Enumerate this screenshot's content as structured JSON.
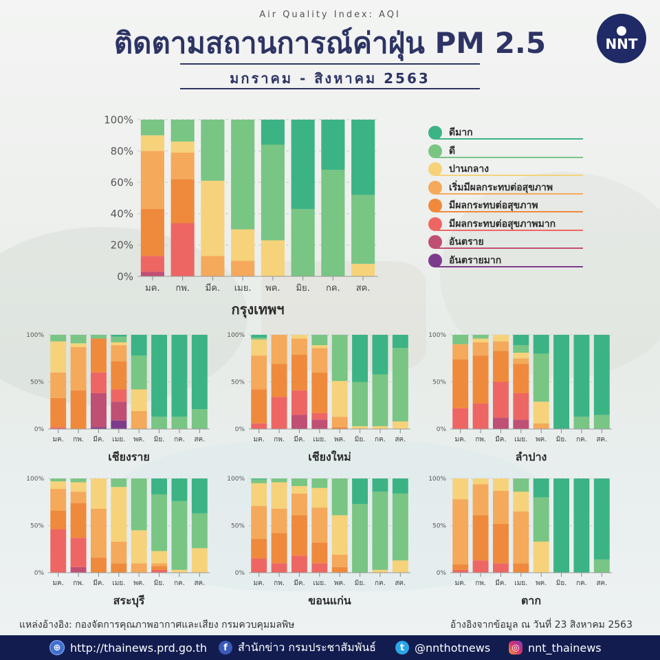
{
  "header": {
    "subtitle": "Air Quality Index: AQI",
    "title": "ติดตามสถานการณ์ค่าฝุ่น PM 2.5",
    "period": "มกราคม - สิงหาคม 2563",
    "logo_text": "NNT"
  },
  "legend": [
    {
      "label": "ดีมาก",
      "color": "#3cb384"
    },
    {
      "label": "ดี",
      "color": "#79c584"
    },
    {
      "label": "ปานกลาง",
      "color": "#f6d27a"
    },
    {
      "label": "เริ่มมีผลกระทบต่อสุขภาพ",
      "color": "#f5a95a"
    },
    {
      "label": "มีผลกระทบต่อสุขภาพ",
      "color": "#ef8a3c"
    },
    {
      "label": "มีผลกระทบต่อสุขภาพมาก",
      "color": "#ee6663"
    },
    {
      "label": "อันตราย",
      "color": "#c04f74"
    },
    {
      "label": "อันตรายมาก",
      "color": "#7d3b8c"
    }
  ],
  "chart_data": [
    {
      "type": "bar",
      "stacked": true,
      "city": "กรุงเทพฯ",
      "categories": [
        "มค.",
        "กพ.",
        "มีค.",
        "เมย.",
        "พค.",
        "มิย.",
        "กค.",
        "สค."
      ],
      "y_ticks": [
        "0%",
        "20%",
        "40%",
        "60%",
        "80%",
        "100%"
      ],
      "ylim": [
        0,
        100
      ],
      "series": [
        {
          "name": "อันตรายมาก",
          "values": [
            0,
            0,
            0,
            0,
            0,
            0,
            0,
            0
          ]
        },
        {
          "name": "อันตราย",
          "values": [
            3,
            0,
            0,
            0,
            0,
            0,
            0,
            0
          ]
        },
        {
          "name": "มีผลกระทบต่อสุขภาพมาก",
          "values": [
            10,
            34,
            0,
            0,
            0,
            0,
            0,
            0
          ]
        },
        {
          "name": "มีผลกระทบต่อสุขภาพ",
          "values": [
            30,
            28,
            0,
            0,
            0,
            0,
            0,
            0
          ]
        },
        {
          "name": "เริ่มมีผลกระทบต่อสุขภาพ",
          "values": [
            37,
            17,
            13,
            10,
            0,
            0,
            0,
            0
          ]
        },
        {
          "name": "ปานกลาง",
          "values": [
            10,
            7,
            48,
            20,
            23,
            0,
            0,
            8
          ]
        },
        {
          "name": "ดี",
          "values": [
            10,
            14,
            39,
            70,
            61,
            43,
            68,
            44
          ]
        },
        {
          "name": "ดีมาก",
          "values": [
            0,
            0,
            0,
            0,
            16,
            57,
            32,
            48
          ]
        }
      ]
    },
    {
      "type": "bar",
      "stacked": true,
      "city": "เชียงราย",
      "categories": [
        "มค.",
        "กพ.",
        "มีค.",
        "เมย.",
        "พค.",
        "มิย.",
        "กค.",
        "สค."
      ],
      "y_ticks": [
        "0%",
        "50%",
        "100%"
      ],
      "ylim": [
        0,
        100
      ],
      "series": [
        {
          "name": "อันตรายมาก",
          "values": [
            0,
            0,
            2,
            9,
            0,
            0,
            0,
            0
          ]
        },
        {
          "name": "อันตราย",
          "values": [
            0,
            0,
            36,
            20,
            0,
            0,
            0,
            0
          ]
        },
        {
          "name": "มีผลกระทบต่อสุขภาพมาก",
          "values": [
            2,
            0,
            22,
            13,
            0,
            0,
            0,
            0
          ]
        },
        {
          "name": "มีผลกระทบต่อสุขภาพ",
          "values": [
            31,
            41,
            36,
            30,
            0,
            0,
            0,
            0
          ]
        },
        {
          "name": "เริ่มมีผลกระทบต่อสุขภาพ",
          "values": [
            27,
            46,
            0,
            17,
            19,
            0,
            0,
            0
          ]
        },
        {
          "name": "ปานกลาง",
          "values": [
            33,
            4,
            0,
            3,
            23,
            0,
            0,
            0
          ]
        },
        {
          "name": "ดี",
          "values": [
            7,
            9,
            4,
            6,
            36,
            13,
            13,
            21
          ]
        },
        {
          "name": "ดีมาก",
          "values": [
            0,
            0,
            0,
            2,
            22,
            87,
            87,
            79
          ]
        }
      ]
    },
    {
      "type": "bar",
      "stacked": true,
      "city": "เชียงใหม่",
      "categories": [
        "มค.",
        "กพ.",
        "มีค.",
        "เมย.",
        "พค.",
        "มิย.",
        "กค.",
        "สค."
      ],
      "y_ticks": [
        "0%",
        "50%",
        "100%"
      ],
      "ylim": [
        0,
        100
      ],
      "series": [
        {
          "name": "อันตรายมาก",
          "values": [
            0,
            0,
            0,
            0,
            0,
            0,
            0,
            0
          ]
        },
        {
          "name": "อันตราย",
          "values": [
            0,
            0,
            15,
            10,
            0,
            0,
            0,
            0
          ]
        },
        {
          "name": "มีผลกระทบต่อสุขภาพมาก",
          "values": [
            6,
            34,
            26,
            7,
            0,
            0,
            0,
            0
          ]
        },
        {
          "name": "มีผลกระทบต่อสุขภาพ",
          "values": [
            36,
            35,
            38,
            43,
            2,
            0,
            0,
            0
          ]
        },
        {
          "name": "เริ่มมีผลกระทบต่อสุขภาพ",
          "values": [
            36,
            31,
            17,
            26,
            11,
            0,
            0,
            0
          ]
        },
        {
          "name": "ปานกลาง",
          "values": [
            17,
            0,
            4,
            3,
            38,
            3,
            3,
            8
          ]
        },
        {
          "name": "ดี",
          "values": [
            2,
            0,
            0,
            11,
            49,
            47,
            55,
            78
          ]
        },
        {
          "name": "ดีมาก",
          "values": [
            3,
            0,
            0,
            0,
            0,
            50,
            42,
            14
          ]
        }
      ]
    },
    {
      "type": "bar",
      "stacked": true,
      "city": "ลำปาง",
      "categories": [
        "มค.",
        "กพ.",
        "มีค.",
        "เมย.",
        "พค.",
        "มิย.",
        "กค.",
        "สค."
      ],
      "y_ticks": [
        "0%",
        "50%",
        "100%"
      ],
      "ylim": [
        0,
        100
      ],
      "series": [
        {
          "name": "อันตรายมาก",
          "values": [
            0,
            0,
            0,
            0,
            0,
            0,
            0,
            0
          ]
        },
        {
          "name": "อันตราย",
          "values": [
            0,
            0,
            12,
            10,
            0,
            0,
            0,
            0
          ]
        },
        {
          "name": "มีผลกระทบต่อสุขภาพมาก",
          "values": [
            22,
            27,
            38,
            28,
            0,
            0,
            0,
            0
          ]
        },
        {
          "name": "มีผลกระทบต่อสุขภาพ",
          "values": [
            52,
            51,
            33,
            31,
            0,
            0,
            0,
            0
          ]
        },
        {
          "name": "เริ่มมีผลกระทบต่อสุขภาพ",
          "values": [
            16,
            14,
            10,
            6,
            6,
            0,
            0,
            0
          ]
        },
        {
          "name": "ปานกลาง",
          "values": [
            0,
            4,
            7,
            6,
            23,
            0,
            0,
            0
          ]
        },
        {
          "name": "ดี",
          "values": [
            10,
            4,
            0,
            8,
            51,
            0,
            13,
            15
          ]
        },
        {
          "name": "ดีมาก",
          "values": [
            0,
            0,
            0,
            11,
            20,
            100,
            87,
            85
          ]
        }
      ]
    },
    {
      "type": "bar",
      "stacked": true,
      "city": "สระบุรี",
      "categories": [
        "มค.",
        "กพ.",
        "มีค.",
        "เมย.",
        "พค.",
        "มิย.",
        "กค.",
        "สค."
      ],
      "y_ticks": [
        "0%",
        "50%",
        "100%"
      ],
      "ylim": [
        0,
        100
      ],
      "series": [
        {
          "name": "อันตรายมาก",
          "values": [
            0,
            0,
            0,
            0,
            0,
            0,
            0,
            0
          ]
        },
        {
          "name": "อันตราย",
          "values": [
            0,
            6,
            0,
            0,
            0,
            0,
            0,
            0
          ]
        },
        {
          "name": "มีผลกระทบต่อสุขภาพมาก",
          "values": [
            46,
            31,
            0,
            0,
            0,
            3,
            0,
            0
          ]
        },
        {
          "name": "มีผลกระทบต่อสุขภาพ",
          "values": [
            20,
            37,
            16,
            10,
            0,
            4,
            0,
            0
          ]
        },
        {
          "name": "เริ่มมีผลกระทบต่อสุขภาพ",
          "values": [
            23,
            12,
            52,
            23,
            10,
            3,
            0,
            0
          ]
        },
        {
          "name": "ปานกลาง",
          "values": [
            8,
            10,
            32,
            58,
            35,
            13,
            3,
            26
          ]
        },
        {
          "name": "ดี",
          "values": [
            3,
            4,
            0,
            9,
            55,
            60,
            73,
            37
          ]
        },
        {
          "name": "ดีมาก",
          "values": [
            0,
            0,
            0,
            0,
            0,
            17,
            24,
            37
          ]
        }
      ]
    },
    {
      "type": "bar",
      "stacked": true,
      "city": "ขอนแก่น",
      "categories": [
        "มค.",
        "กพ.",
        "มีค.",
        "เมย.",
        "พค.",
        "มิย.",
        "กค.",
        "สค."
      ],
      "y_ticks": [
        "0%",
        "50%",
        "100%"
      ],
      "ylim": [
        0,
        100
      ],
      "series": [
        {
          "name": "อันตรายมาก",
          "values": [
            0,
            0,
            0,
            0,
            0,
            0,
            0,
            0
          ]
        },
        {
          "name": "อันตราย",
          "values": [
            0,
            0,
            0,
            0,
            0,
            0,
            0,
            0
          ]
        },
        {
          "name": "มีผลกระทบต่อสุขภาพมาก",
          "values": [
            15,
            10,
            18,
            10,
            0,
            0,
            0,
            0
          ]
        },
        {
          "name": "มีผลกระทบต่อสุขภาพ",
          "values": [
            21,
            32,
            43,
            22,
            6,
            0,
            0,
            0
          ]
        },
        {
          "name": "เริ่มมีผลกระทบต่อสุขภาพ",
          "values": [
            35,
            26,
            23,
            37,
            13,
            0,
            0,
            0
          ]
        },
        {
          "name": "ปานกลาง",
          "values": [
            24,
            28,
            8,
            21,
            42,
            0,
            3,
            13
          ]
        },
        {
          "name": "ดี",
          "values": [
            4,
            4,
            8,
            10,
            39,
            73,
            83,
            71
          ]
        },
        {
          "name": "ดีมาก",
          "values": [
            1,
            0,
            0,
            0,
            0,
            27,
            14,
            16
          ]
        }
      ]
    },
    {
      "type": "bar",
      "stacked": true,
      "city": "ตาก",
      "categories": [
        "มค.",
        "กพ.",
        "มีค.",
        "เมย.",
        "พค.",
        "มิย.",
        "กค.",
        "สค."
      ],
      "y_ticks": [
        "0%",
        "50%",
        "100%"
      ],
      "ylim": [
        0,
        100
      ],
      "series": [
        {
          "name": "อันตรายมาก",
          "values": [
            0,
            0,
            0,
            0,
            0,
            0,
            0,
            0
          ]
        },
        {
          "name": "อันตราย",
          "values": [
            0,
            0,
            0,
            0,
            0,
            0,
            0,
            0
          ]
        },
        {
          "name": "มีผลกระทบต่อสุขภาพมาก",
          "values": [
            3,
            13,
            10,
            0,
            0,
            0,
            0,
            0
          ]
        },
        {
          "name": "มีผลกระทบต่อสุขภาพ",
          "values": [
            6,
            48,
            42,
            10,
            0,
            0,
            0,
            0
          ]
        },
        {
          "name": "เริ่มมีผลกระทบต่อสุขภาพ",
          "values": [
            69,
            33,
            35,
            55,
            0,
            0,
            0,
            0
          ]
        },
        {
          "name": "ปานกลาง",
          "values": [
            22,
            6,
            13,
            21,
            33,
            0,
            0,
            0
          ]
        },
        {
          "name": "ดี",
          "values": [
            0,
            0,
            0,
            14,
            47,
            0,
            0,
            14
          ]
        },
        {
          "name": "ดีมาก",
          "values": [
            0,
            0,
            0,
            0,
            20,
            100,
            100,
            86
          ]
        }
      ]
    }
  ],
  "footer": {
    "source": "แหล่งอ้างอิง: กองจัดการคุณภาพอากาศและเสียง กรมควบคุมมลพิษ",
    "as_of": "อ้างอิงจากข้อมูล ณ วันที่ 23 สิงหาคม 2563",
    "website": "http://thainews.prd.go.th",
    "facebook": "สำนักข่าว กรมประชาสัมพันธ์",
    "twitter": "@nnthotnews",
    "instagram": "nnt_thainews",
    "website_icon": "globe-icon",
    "facebook_icon": "facebook-icon",
    "twitter_icon": "twitter-icon",
    "instagram_icon": "instagram-icon"
  }
}
